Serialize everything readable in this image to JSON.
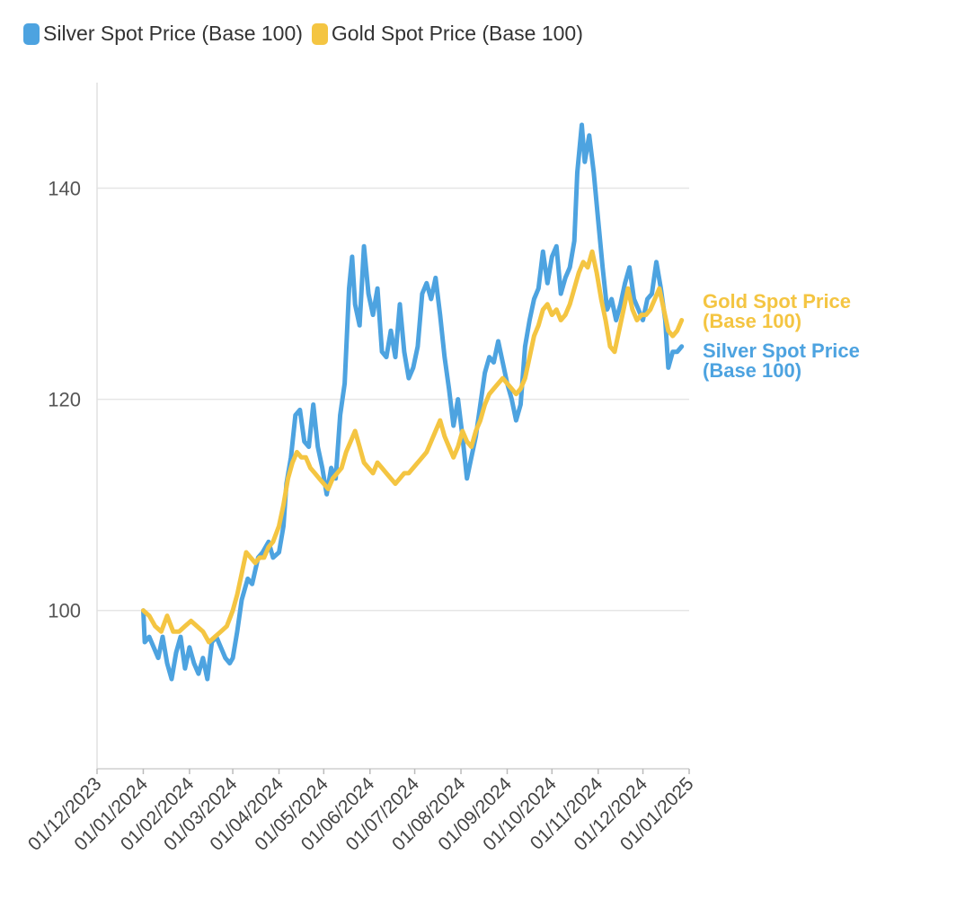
{
  "chart_data": {
    "type": "line",
    "title": "",
    "xlabel": "",
    "ylabel": "",
    "x_axis": {
      "type": "date",
      "range": [
        "2023-12-01",
        "2025-01-01"
      ],
      "ticks": [
        {
          "date": "2023-12-01",
          "label": "01/12/2023"
        },
        {
          "date": "2024-01-01",
          "label": "01/01/2024"
        },
        {
          "date": "2024-02-01",
          "label": "01/02/2024"
        },
        {
          "date": "2024-03-01",
          "label": "01/03/2024"
        },
        {
          "date": "2024-04-01",
          "label": "01/04/2024"
        },
        {
          "date": "2024-05-01",
          "label": "01/05/2024"
        },
        {
          "date": "2024-06-01",
          "label": "01/06/2024"
        },
        {
          "date": "2024-07-01",
          "label": "01/07/2024"
        },
        {
          "date": "2024-08-01",
          "label": "01/08/2024"
        },
        {
          "date": "2024-09-01",
          "label": "01/09/2024"
        },
        {
          "date": "2024-10-01",
          "label": "01/10/2024"
        },
        {
          "date": "2024-11-01",
          "label": "01/11/2024"
        },
        {
          "date": "2024-12-01",
          "label": "01/12/2024"
        },
        {
          "date": "2025-01-01",
          "label": "01/01/2025"
        }
      ]
    },
    "y_axis": {
      "range": [
        85,
        150
      ],
      "ticks": [
        100,
        120,
        140
      ],
      "grid": true
    },
    "legend": {
      "placement": "top-left"
    },
    "series": [
      {
        "name": "Silver Spot Price (Base 100)",
        "color": "#4da3e0",
        "end_label": "Silver Spot Price (Base 100)",
        "points": [
          [
            "2024-01-01",
            100
          ],
          [
            "2024-01-02",
            97
          ],
          [
            "2024-01-05",
            97.5
          ],
          [
            "2024-01-08",
            96.5
          ],
          [
            "2024-01-11",
            95.5
          ],
          [
            "2024-01-14",
            97.5
          ],
          [
            "2024-01-17",
            95
          ],
          [
            "2024-01-20",
            93.5
          ],
          [
            "2024-01-23",
            96
          ],
          [
            "2024-01-26",
            97.5
          ],
          [
            "2024-01-29",
            94.5
          ],
          [
            "2024-02-01",
            96.5
          ],
          [
            "2024-02-04",
            95
          ],
          [
            "2024-02-07",
            94
          ],
          [
            "2024-02-10",
            95.5
          ],
          [
            "2024-02-13",
            93.5
          ],
          [
            "2024-02-16",
            97
          ],
          [
            "2024-02-19",
            97.5
          ],
          [
            "2024-02-22",
            96.5
          ],
          [
            "2024-02-25",
            95.5
          ],
          [
            "2024-02-28",
            95
          ],
          [
            "2024-03-01",
            95.5
          ],
          [
            "2024-03-04",
            98
          ],
          [
            "2024-03-07",
            101
          ],
          [
            "2024-03-11",
            103
          ],
          [
            "2024-03-14",
            102.5
          ],
          [
            "2024-03-18",
            105
          ],
          [
            "2024-03-21",
            105.5
          ],
          [
            "2024-03-25",
            106.5
          ],
          [
            "2024-03-28",
            105
          ],
          [
            "2024-04-01",
            105.5
          ],
          [
            "2024-04-04",
            108
          ],
          [
            "2024-04-06",
            112
          ],
          [
            "2024-04-09",
            114.5
          ],
          [
            "2024-04-12",
            118.5
          ],
          [
            "2024-04-15",
            119
          ],
          [
            "2024-04-18",
            116
          ],
          [
            "2024-04-21",
            115.5
          ],
          [
            "2024-04-24",
            119.5
          ],
          [
            "2024-04-27",
            115.5
          ],
          [
            "2024-04-30",
            113.5
          ],
          [
            "2024-05-03",
            111
          ],
          [
            "2024-05-06",
            113.5
          ],
          [
            "2024-05-09",
            112.5
          ],
          [
            "2024-05-12",
            118.5
          ],
          [
            "2024-05-15",
            121.5
          ],
          [
            "2024-05-18",
            130.5
          ],
          [
            "2024-05-20",
            133.5
          ],
          [
            "2024-05-22",
            129
          ],
          [
            "2024-05-25",
            127
          ],
          [
            "2024-05-28",
            134.5
          ],
          [
            "2024-05-31",
            130
          ],
          [
            "2024-06-03",
            128
          ],
          [
            "2024-06-06",
            130.5
          ],
          [
            "2024-06-09",
            124.5
          ],
          [
            "2024-06-12",
            124
          ],
          [
            "2024-06-15",
            126.5
          ],
          [
            "2024-06-18",
            124
          ],
          [
            "2024-06-21",
            129
          ],
          [
            "2024-06-24",
            124.5
          ],
          [
            "2024-06-27",
            122
          ],
          [
            "2024-06-30",
            123
          ],
          [
            "2024-07-03",
            125
          ],
          [
            "2024-07-06",
            130
          ],
          [
            "2024-07-09",
            131
          ],
          [
            "2024-07-12",
            129.5
          ],
          [
            "2024-07-15",
            131.5
          ],
          [
            "2024-07-18",
            128
          ],
          [
            "2024-07-21",
            124
          ],
          [
            "2024-07-24",
            121
          ],
          [
            "2024-07-27",
            117.5
          ],
          [
            "2024-07-30",
            120
          ],
          [
            "2024-08-02",
            116.5
          ],
          [
            "2024-08-05",
            112.5
          ],
          [
            "2024-08-08",
            114.5
          ],
          [
            "2024-08-11",
            116.5
          ],
          [
            "2024-08-14",
            119.5
          ],
          [
            "2024-08-17",
            122.5
          ],
          [
            "2024-08-20",
            124
          ],
          [
            "2024-08-23",
            123.5
          ],
          [
            "2024-08-26",
            125.5
          ],
          [
            "2024-08-29",
            123.5
          ],
          [
            "2024-09-01",
            121.5
          ],
          [
            "2024-09-04",
            120
          ],
          [
            "2024-09-07",
            118
          ],
          [
            "2024-09-10",
            119.5
          ],
          [
            "2024-09-13",
            125
          ],
          [
            "2024-09-16",
            127.5
          ],
          [
            "2024-09-19",
            129.5
          ],
          [
            "2024-09-22",
            130.5
          ],
          [
            "2024-09-25",
            134
          ],
          [
            "2024-09-28",
            131
          ],
          [
            "2024-10-01",
            133.5
          ],
          [
            "2024-10-04",
            134.5
          ],
          [
            "2024-10-07",
            130
          ],
          [
            "2024-10-10",
            131.5
          ],
          [
            "2024-10-13",
            132.5
          ],
          [
            "2024-10-16",
            135
          ],
          [
            "2024-10-18",
            141.5
          ],
          [
            "2024-10-21",
            146
          ],
          [
            "2024-10-23",
            142.5
          ],
          [
            "2024-10-26",
            145
          ],
          [
            "2024-10-29",
            141.5
          ],
          [
            "2024-11-01",
            137
          ],
          [
            "2024-11-04",
            132.5
          ],
          [
            "2024-11-07",
            128.5
          ],
          [
            "2024-11-10",
            129.5
          ],
          [
            "2024-11-13",
            127.5
          ],
          [
            "2024-11-16",
            129
          ],
          [
            "2024-11-19",
            131
          ],
          [
            "2024-11-22",
            132.5
          ],
          [
            "2024-11-25",
            129.5
          ],
          [
            "2024-11-28",
            128.5
          ],
          [
            "2024-12-01",
            127.5
          ],
          [
            "2024-12-04",
            129.5
          ],
          [
            "2024-12-07",
            130
          ],
          [
            "2024-12-10",
            133
          ],
          [
            "2024-12-13",
            130.5
          ],
          [
            "2024-12-16",
            127.5
          ],
          [
            "2024-12-18",
            123
          ],
          [
            "2024-12-21",
            124.5
          ],
          [
            "2024-12-24",
            124.5
          ],
          [
            "2024-12-27",
            125
          ]
        ]
      },
      {
        "name": "Gold Spot Price (Base 100)",
        "color": "#f4c542",
        "end_label": "Gold Spot Price (Base 100)",
        "points": [
          [
            "2024-01-01",
            100
          ],
          [
            "2024-01-05",
            99.5
          ],
          [
            "2024-01-09",
            98.5
          ],
          [
            "2024-01-13",
            98
          ],
          [
            "2024-01-17",
            99.5
          ],
          [
            "2024-01-21",
            98
          ],
          [
            "2024-01-25",
            98
          ],
          [
            "2024-01-29",
            98.5
          ],
          [
            "2024-02-02",
            99
          ],
          [
            "2024-02-06",
            98.5
          ],
          [
            "2024-02-10",
            98
          ],
          [
            "2024-02-14",
            97
          ],
          [
            "2024-02-18",
            97.5
          ],
          [
            "2024-02-22",
            98
          ],
          [
            "2024-02-26",
            98.5
          ],
          [
            "2024-03-01",
            100
          ],
          [
            "2024-03-04",
            101.5
          ],
          [
            "2024-03-07",
            103.5
          ],
          [
            "2024-03-10",
            105.5
          ],
          [
            "2024-03-13",
            105
          ],
          [
            "2024-03-16",
            104.5
          ],
          [
            "2024-03-19",
            105
          ],
          [
            "2024-03-22",
            105
          ],
          [
            "2024-03-25",
            106
          ],
          [
            "2024-03-28",
            106.5
          ],
          [
            "2024-04-01",
            108
          ],
          [
            "2024-04-04",
            110
          ],
          [
            "2024-04-07",
            112.5
          ],
          [
            "2024-04-10",
            114
          ],
          [
            "2024-04-13",
            115
          ],
          [
            "2024-04-16",
            114.5
          ],
          [
            "2024-04-19",
            114.5
          ],
          [
            "2024-04-22",
            113.5
          ],
          [
            "2024-04-25",
            113
          ],
          [
            "2024-04-28",
            112.5
          ],
          [
            "2024-05-01",
            112
          ],
          [
            "2024-05-04",
            111.5
          ],
          [
            "2024-05-07",
            112.5
          ],
          [
            "2024-05-10",
            113
          ],
          [
            "2024-05-13",
            113.5
          ],
          [
            "2024-05-16",
            115
          ],
          [
            "2024-05-19",
            116
          ],
          [
            "2024-05-22",
            117
          ],
          [
            "2024-05-25",
            115.5
          ],
          [
            "2024-05-28",
            114
          ],
          [
            "2024-05-31",
            113.5
          ],
          [
            "2024-06-03",
            113
          ],
          [
            "2024-06-06",
            114
          ],
          [
            "2024-06-09",
            113.5
          ],
          [
            "2024-06-12",
            113
          ],
          [
            "2024-06-15",
            112.5
          ],
          [
            "2024-06-18",
            112
          ],
          [
            "2024-06-21",
            112.5
          ],
          [
            "2024-06-24",
            113
          ],
          [
            "2024-06-27",
            113
          ],
          [
            "2024-06-30",
            113.5
          ],
          [
            "2024-07-03",
            114
          ],
          [
            "2024-07-06",
            114.5
          ],
          [
            "2024-07-09",
            115
          ],
          [
            "2024-07-12",
            116
          ],
          [
            "2024-07-15",
            117
          ],
          [
            "2024-07-18",
            118
          ],
          [
            "2024-07-21",
            116.5
          ],
          [
            "2024-07-24",
            115.5
          ],
          [
            "2024-07-27",
            114.5
          ],
          [
            "2024-07-30",
            115.5
          ],
          [
            "2024-08-02",
            117
          ],
          [
            "2024-08-05",
            116
          ],
          [
            "2024-08-08",
            115.5
          ],
          [
            "2024-08-11",
            117
          ],
          [
            "2024-08-14",
            118
          ],
          [
            "2024-08-17",
            119.5
          ],
          [
            "2024-08-20",
            120.5
          ],
          [
            "2024-08-23",
            121
          ],
          [
            "2024-08-26",
            121.5
          ],
          [
            "2024-08-29",
            122
          ],
          [
            "2024-09-01",
            121.5
          ],
          [
            "2024-09-04",
            121
          ],
          [
            "2024-09-07",
            120.5
          ],
          [
            "2024-09-10",
            121
          ],
          [
            "2024-09-13",
            122
          ],
          [
            "2024-09-16",
            124
          ],
          [
            "2024-09-19",
            126
          ],
          [
            "2024-09-22",
            127
          ],
          [
            "2024-09-25",
            128.5
          ],
          [
            "2024-09-28",
            129
          ],
          [
            "2024-10-01",
            128
          ],
          [
            "2024-10-04",
            128.5
          ],
          [
            "2024-10-07",
            127.5
          ],
          [
            "2024-10-10",
            128
          ],
          [
            "2024-10-13",
            129
          ],
          [
            "2024-10-16",
            130.5
          ],
          [
            "2024-10-19",
            132
          ],
          [
            "2024-10-22",
            133
          ],
          [
            "2024-10-25",
            132.5
          ],
          [
            "2024-10-28",
            134
          ],
          [
            "2024-10-31",
            132
          ],
          [
            "2024-11-03",
            129.5
          ],
          [
            "2024-11-06",
            127.5
          ],
          [
            "2024-11-09",
            125
          ],
          [
            "2024-11-12",
            124.5
          ],
          [
            "2024-11-15",
            126.5
          ],
          [
            "2024-11-18",
            128.5
          ],
          [
            "2024-11-21",
            130.5
          ],
          [
            "2024-11-24",
            128.5
          ],
          [
            "2024-11-27",
            127.5
          ],
          [
            "2024-11-30",
            128
          ],
          [
            "2024-12-03",
            128
          ],
          [
            "2024-12-06",
            128.5
          ],
          [
            "2024-12-09",
            129.5
          ],
          [
            "2024-12-12",
            130.5
          ],
          [
            "2024-12-15",
            128.5
          ],
          [
            "2024-12-18",
            126.5
          ],
          [
            "2024-12-21",
            126
          ],
          [
            "2024-12-24",
            126.5
          ],
          [
            "2024-12-27",
            127.5
          ]
        ]
      }
    ]
  }
}
